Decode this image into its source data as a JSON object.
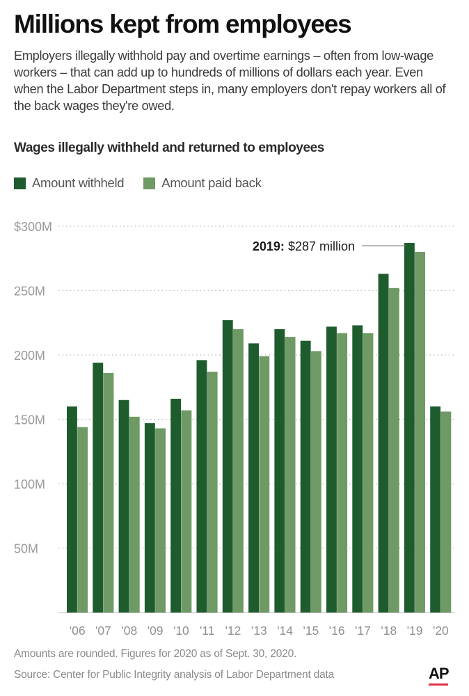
{
  "header": {
    "title": "Millions kept from employees",
    "subtitle": "Employers illegally withhold pay and overtime earnings – often from low-wage workers – that can add up to hundreds of millions of dollars each year. Even when the Labor Department steps in, many employers don't repay workers all of the back wages they're owed."
  },
  "chart_data": {
    "type": "bar",
    "title": "Wages illegally withheld and returned to employees",
    "categories": [
      "'06",
      "'07",
      "'08",
      "'09",
      "'10",
      "'11",
      "'12",
      "'13",
      "'14",
      "'15",
      "'16",
      "'17",
      "'18",
      "'19",
      "'20"
    ],
    "series": [
      {
        "name": "Amount withheld",
        "color": "#1e5c2e",
        "values": [
          160,
          194,
          165,
          147,
          166,
          196,
          227,
          209,
          220,
          211,
          222,
          223,
          263,
          287,
          160
        ]
      },
      {
        "name": "Amount paid back",
        "color": "#6f9a66",
        "values": [
          144,
          186,
          152,
          143,
          157,
          187,
          220,
          199,
          214,
          203,
          217,
          217,
          252,
          280,
          156
        ]
      }
    ],
    "y_ticks": [
      {
        "value": 300,
        "label": "$300M"
      },
      {
        "value": 250,
        "label": "250M"
      },
      {
        "value": 200,
        "label": "200M"
      },
      {
        "value": 150,
        "label": "150M"
      },
      {
        "value": 100,
        "label": "100M"
      },
      {
        "value": 50,
        "label": "50M"
      }
    ],
    "ylim": [
      0,
      300
    ],
    "grid": true,
    "legend_position": "top-left",
    "annotation": {
      "category": "'19",
      "value": 287,
      "bold": "2019:",
      "text": " $287 million"
    },
    "xlabel": "",
    "ylabel": ""
  },
  "footer": {
    "note": "Amounts are rounded. Figures for 2020 as of Sept. 30, 2020.",
    "source": "Source:  Center for Public Integrity analysis of Labor Department data",
    "logo": "AP"
  }
}
